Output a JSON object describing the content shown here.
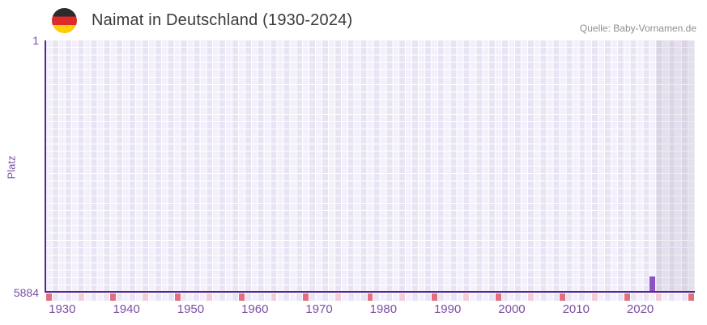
{
  "header": {
    "title": "Naimat in Deutschland (1930-2024)",
    "source": "Quelle: Baby-Vornamen.de",
    "flag_icon": "german-flag"
  },
  "chart_data": {
    "type": "column",
    "title": "Naimat in Deutschland (1930-2024)",
    "ylabel": "Platz",
    "y_axis": {
      "min_label": "1",
      "max_label": "5884",
      "min": 1,
      "max": 5884,
      "orientation": "rank 1 (best) at top, 5884 (worst) at bottom"
    },
    "x_axis": {
      "label_years": [
        "1930",
        "1940",
        "1950",
        "1960",
        "1970",
        "1980",
        "1990",
        "2000",
        "2010",
        "2020"
      ],
      "first_column_year": 1928,
      "last_column_year": 2028,
      "columns": 101,
      "dark_tick_start_year": 1928,
      "dark_tick_interval": 10,
      "light_tick_start_year": 1933,
      "light_tick_interval": 10
    },
    "series": [
      {
        "name": "Platz von Naimat",
        "points": [
          {
            "year": 2022,
            "platz": 5884
          }
        ]
      }
    ],
    "highlight_band": {
      "from_year": 2023,
      "to_year": 2028
    },
    "legend": "none",
    "grid": "fine lavender checkerboard with white gridlines, alternating column stripes",
    "colors": {
      "bar": "#8c54c5",
      "axis_line": "#52288f",
      "grid_cell_light": "#f3f0fb",
      "grid_cell_dark": "#e9e4f4",
      "band_tint": "rgba(120,110,140,0.13)",
      "tick_dark_pink": "#e0707e",
      "tick_light_pink": "#f2cdd8",
      "axis_label": "#7b4fa6",
      "title_text": "#3a3a3a",
      "source_text": "#8e8e8e",
      "flag_black": "#2b2b2b",
      "flag_red": "#dd2b2b",
      "flag_gold": "#ffcd05"
    }
  }
}
